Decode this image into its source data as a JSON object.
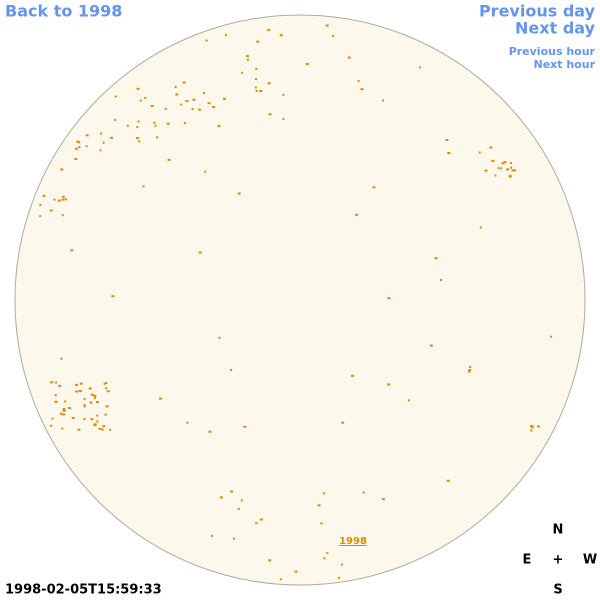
{
  "links": {
    "back": "Back to 1998",
    "previous_day": "Previous day",
    "next_day": "Next day",
    "previous_hour": "Previous hour",
    "next_hour": "Next hour"
  },
  "year_link": "1998",
  "timestamp": "1998-02-05T15:59:33",
  "compass": {
    "north": "N",
    "east": "E",
    "center": "+",
    "west": "W",
    "south": "S"
  }
}
